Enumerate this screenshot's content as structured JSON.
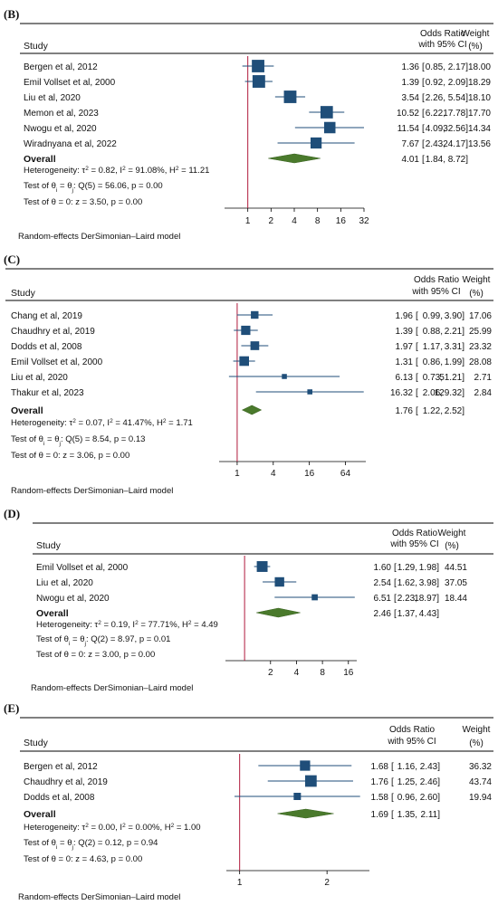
{
  "chart_data": [
    {
      "type": "forest",
      "panel_label": "(B)",
      "header": {
        "study": "Study",
        "effect_line1": "Odds Ratio",
        "effect_line2": "with 95% CI",
        "weight_line1": "Weight",
        "weight_line2": "(%)"
      },
      "xscale": "log2",
      "xlim": [
        0.5,
        32
      ],
      "xticks": [
        1,
        2,
        4,
        8,
        16,
        32
      ],
      "rows": [
        {
          "study": "Bergen et al, 2012",
          "or": 1.36,
          "lo": 0.85,
          "hi": 2.17,
          "or_text": "1.36",
          "lo_text": "0.85,",
          "hi_text": "2.17]",
          "weight": 18.0,
          "weight_text": "18.00"
        },
        {
          "study": "Emil Vollset et al, 2000",
          "or": 1.39,
          "lo": 0.92,
          "hi": 2.09,
          "or_text": "1.39",
          "lo_text": "0.92,",
          "hi_text": "2.09]",
          "weight": 18.29,
          "weight_text": "18.29"
        },
        {
          "study": "Liu et al, 2020",
          "or": 3.54,
          "lo": 2.26,
          "hi": 5.54,
          "or_text": "3.54",
          "lo_text": "2.26,",
          "hi_text": "5.54]",
          "weight": 18.1,
          "weight_text": "18.10"
        },
        {
          "study": "Memon et al, 2023",
          "or": 10.52,
          "lo": 6.22,
          "hi": 17.78,
          "or_text": "10.52",
          "lo_text": "6.22,",
          "hi_text": "17.78]",
          "weight": 17.7,
          "weight_text": "17.70"
        },
        {
          "study": "Nwogu et al, 2020",
          "or": 11.54,
          "lo": 4.09,
          "hi": 32.56,
          "or_text": "11.54",
          "lo_text": "4.09,",
          "hi_text": "32.56]",
          "weight": 14.34,
          "weight_text": "14.34"
        },
        {
          "study": "Wiradnyana et al, 2022",
          "or": 7.67,
          "lo": 2.43,
          "hi": 24.17,
          "or_text": "7.67",
          "lo_text": "2.43,",
          "hi_text": "24.17]",
          "weight": 13.56,
          "weight_text": "13.56"
        }
      ],
      "overall": {
        "label": "Overall",
        "or": 4.01,
        "lo": 1.84,
        "hi": 8.72,
        "or_text": "4.01",
        "lo_text": "1.84,",
        "hi_text": "8.72]"
      },
      "heterogeneity": {
        "prefix": "Heterogeneity: ",
        "tau2": "0.82",
        "i2": "91.08%",
        "h2": "11.21"
      },
      "test_homogeneity": {
        "df": "5",
        "q": "56.06",
        "p": "0.00"
      },
      "test_effect": {
        "z": "3.50",
        "p": "0.00"
      },
      "model_note": "Random-effects DerSimonian–Laird model"
    },
    {
      "type": "forest",
      "panel_label": "(C)",
      "header": {
        "study": "Study",
        "effect_line1": "Odds Ratio",
        "effect_line2": "with 95% CI",
        "weight_line1": "Weight",
        "weight_line2": "(%)"
      },
      "xscale": "log2",
      "xlim": [
        0.5,
        140
      ],
      "xticks": [
        1,
        4,
        16,
        64
      ],
      "rows": [
        {
          "study": "Chang et al, 2019",
          "or": 1.96,
          "lo": 0.99,
          "hi": 3.9,
          "or_text": "1.96",
          "lo_text": "0.99,",
          "hi_text": "3.90]",
          "weight": 17.06,
          "weight_text": "17.06"
        },
        {
          "study": "Chaudhry et al, 2019",
          "or": 1.39,
          "lo": 0.88,
          "hi": 2.21,
          "or_text": "1.39",
          "lo_text": "0.88,",
          "hi_text": "2.21]",
          "weight": 25.99,
          "weight_text": "25.99"
        },
        {
          "study": "Dodds et al, 2008",
          "or": 1.97,
          "lo": 1.17,
          "hi": 3.31,
          "or_text": "1.97",
          "lo_text": "1.17,",
          "hi_text": "3.31]",
          "weight": 23.32,
          "weight_text": "23.32"
        },
        {
          "study": "Emil Vollset et al, 2000",
          "or": 1.31,
          "lo": 0.86,
          "hi": 1.99,
          "or_text": "1.31",
          "lo_text": "0.86,",
          "hi_text": "1.99]",
          "weight": 28.08,
          "weight_text": "28.08"
        },
        {
          "study": "Liu et al, 2020",
          "or": 6.13,
          "lo": 0.73,
          "hi": 51.21,
          "or_text": "6.13",
          "lo_text": "0.73,",
          "hi_text": "51.21]",
          "weight": 2.71,
          "weight_text": "2.71"
        },
        {
          "study": "Thakur et al, 2023",
          "or": 16.32,
          "lo": 2.06,
          "hi": 129.32,
          "or_text": "16.32",
          "lo_text": "2.06,",
          "hi_text": "129.32]",
          "weight": 2.84,
          "weight_text": "2.84"
        }
      ],
      "overall": {
        "label": "Overall",
        "or": 1.76,
        "lo": 1.22,
        "hi": 2.52,
        "or_text": "1.76",
        "lo_text": "1.22,",
        "hi_text": "2.52]"
      },
      "heterogeneity": {
        "prefix": "Heterogeneity: ",
        "tau2": "0.07",
        "i2": "41.47%",
        "h2": "1.71"
      },
      "test_homogeneity": {
        "df": "5",
        "q": "8.54",
        "p": "0.13"
      },
      "test_effect": {
        "z": "3.06",
        "p": "0.00"
      },
      "model_note": "Random-effects DerSimonian–Laird model"
    },
    {
      "type": "forest",
      "panel_label": "(D)",
      "header": {
        "study": "Study",
        "effect_line1": "Odds Ratio",
        "effect_line2": "with 95% CI",
        "weight_line1": "Weight",
        "weight_line2": "(%)"
      },
      "xscale": "log2",
      "xlim": [
        0.6,
        20
      ],
      "xticks": [
        2,
        4,
        8,
        16
      ],
      "rows": [
        {
          "study": "Emil Vollset et al, 2000",
          "or": 1.6,
          "lo": 1.29,
          "hi": 1.98,
          "or_text": "1.60",
          "lo_text": "1.29,",
          "hi_text": "1.98]",
          "weight": 44.51,
          "weight_text": "44.51"
        },
        {
          "study": "Liu et al, 2020",
          "or": 2.54,
          "lo": 1.62,
          "hi": 3.98,
          "or_text": "2.54",
          "lo_text": "1.62,",
          "hi_text": "3.98]",
          "weight": 37.05,
          "weight_text": "37.05"
        },
        {
          "study": "Nwogu et al, 2020",
          "or": 6.51,
          "lo": 2.23,
          "hi": 18.97,
          "or_text": "6.51",
          "lo_text": "2.23,",
          "hi_text": "18.97]",
          "weight": 18.44,
          "weight_text": "18.44"
        }
      ],
      "overall": {
        "label": "Overall",
        "or": 2.46,
        "lo": 1.37,
        "hi": 4.43,
        "or_text": "2.46",
        "lo_text": "1.37,",
        "hi_text": "4.43]"
      },
      "heterogeneity": {
        "prefix": "Heterogeneity: ",
        "tau2": "0.19",
        "i2": "77.71%",
        "h2": "4.49"
      },
      "test_homogeneity": {
        "df": "2",
        "q": "8.97",
        "p": "0.01"
      },
      "test_effect": {
        "z": "3.00",
        "p": "0.00"
      },
      "model_note": "Random-effects DerSimonian–Laird model"
    },
    {
      "type": "forest",
      "panel_label": "(E)",
      "header": {
        "study": "Study",
        "effect_line1": "Odds Ratio",
        "effect_line2": "with 95% CI",
        "weight_line1": "Weight",
        "weight_line2": "(%)"
      },
      "xscale": "log2",
      "xlim": [
        0.9,
        2.8
      ],
      "xticks": [
        1,
        2
      ],
      "rows": [
        {
          "study": "Bergen et al, 2012",
          "or": 1.68,
          "lo": 1.16,
          "hi": 2.43,
          "or_text": "1.68",
          "lo_text": "1.16,",
          "hi_text": "2.43]",
          "weight": 36.32,
          "weight_text": "36.32"
        },
        {
          "study": "Chaudhry et al, 2019",
          "or": 1.76,
          "lo": 1.25,
          "hi": 2.46,
          "or_text": "1.76",
          "lo_text": "1.25,",
          "hi_text": "2.46]",
          "weight": 43.74,
          "weight_text": "43.74"
        },
        {
          "study": "Dodds et al, 2008",
          "or": 1.58,
          "lo": 0.96,
          "hi": 2.6,
          "or_text": "1.58",
          "lo_text": "0.96,",
          "hi_text": "2.60]",
          "weight": 19.94,
          "weight_text": "19.94"
        }
      ],
      "overall": {
        "label": "Overall",
        "or": 1.69,
        "lo": 1.35,
        "hi": 2.11,
        "or_text": "1.69",
        "lo_text": "1.35,",
        "hi_text": "2.11]"
      },
      "heterogeneity": {
        "prefix": "Heterogeneity: ",
        "tau2": "0.00",
        "i2": "0.00%",
        "h2": "1.00"
      },
      "test_homogeneity": {
        "df": "2",
        "q": "0.12",
        "p": "0.94"
      },
      "test_effect": {
        "z": "4.63",
        "p": "0.00"
      },
      "model_note": "Random-effects DerSimonian–Laird model"
    }
  ],
  "colors": {
    "square": "#1f4e79",
    "diamond": "#4a7a2c",
    "diamond_stroke": "#3a6321",
    "null_line": "#b01a3c",
    "rule": "#000000"
  }
}
